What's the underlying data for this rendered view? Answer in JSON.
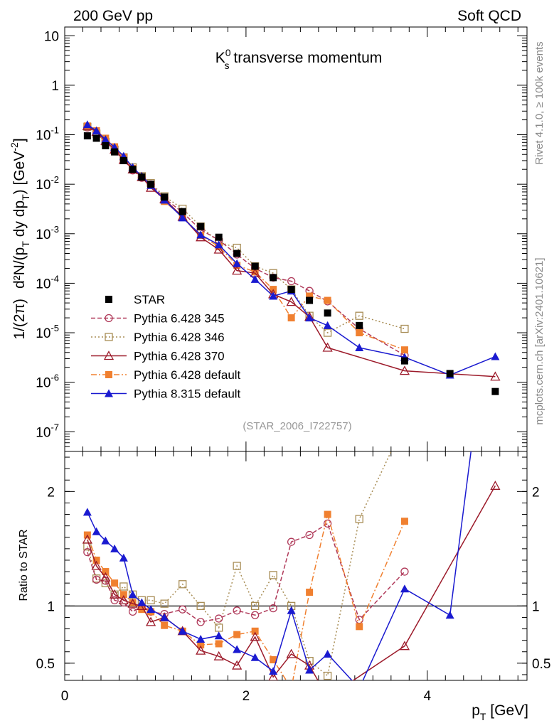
{
  "header": {
    "left": "200 GeV pp",
    "right": "Soft QCD"
  },
  "side": {
    "rivet": "Rivet 4.1.0, ≥ 100k events",
    "mcplots": "mcplots.cern.ch [arXiv:2401.10621]"
  },
  "analysis_id": "(STAR_2006_I722757)",
  "colors": {
    "STAR": "#000000",
    "p345": "#b03a5a",
    "p346": "#a88d55",
    "p370": "#9c1a2a",
    "p6def": "#f08030",
    "p8def": "#1a1ad0"
  },
  "chart_data": [
    {
      "type": "line",
      "scale": "log",
      "title_main": "K",
      "title_sup": "0",
      "title_sub": "s",
      "title_rest": " transverse momentum",
      "ylabel_a": "1/(2π)",
      "ylabel_b": "d²N/(p",
      "ylabel_b_sub": "T",
      "ylabel_c": " dy dp",
      "ylabel_c_sub": "T",
      "ylabel_d": ") [GeV",
      "ylabel_d_sup": "-2",
      "ylabel_e": "]",
      "ylim": [
        4e-08,
        15
      ],
      "xlim": [
        0,
        5.1
      ],
      "yticks": [
        {
          "v": 10,
          "label": "10"
        },
        {
          "v": 1,
          "label": "1"
        },
        {
          "v": 0.1,
          "label": "10",
          "exp": "-1"
        },
        {
          "v": 0.01,
          "label": "10",
          "exp": "-2"
        },
        {
          "v": 0.001,
          "label": "10",
          "exp": "-3"
        },
        {
          "v": 0.0001,
          "label": "10",
          "exp": "-4"
        },
        {
          "v": 1e-05,
          "label": "10",
          "exp": "-5"
        },
        {
          "v": 1e-06,
          "label": "10",
          "exp": "-6"
        },
        {
          "v": 1e-07,
          "label": "10",
          "exp": "-7"
        }
      ],
      "series": [
        {
          "key": "STAR",
          "name": "STAR",
          "x": [
            0.25,
            0.35,
            0.45,
            0.55,
            0.65,
            0.75,
            0.85,
            0.95,
            1.1,
            1.3,
            1.5,
            1.7,
            1.9,
            2.1,
            2.3,
            2.5,
            2.7,
            2.9,
            3.25,
            3.75,
            4.25,
            4.75
          ],
          "y": [
            0.095,
            0.085,
            0.06,
            0.045,
            0.03,
            0.02,
            0.014,
            0.01,
            0.0055,
            0.0028,
            0.0014,
            0.00085,
            0.0004,
            0.00022,
            0.00013,
            7.5e-05,
            4.5e-05,
            2.5e-05,
            1.4e-05,
            2.7e-06,
            1.5e-06,
            6.5e-07
          ]
        },
        {
          "key": "p345",
          "name": "Pythia 6.428 345",
          "x": [
            0.25,
            0.35,
            0.45,
            0.55,
            0.65,
            0.75,
            0.85,
            0.95,
            1.1,
            1.3,
            1.5,
            1.7,
            1.9,
            2.1,
            2.3,
            2.5,
            2.7,
            2.9,
            3.25,
            3.75
          ],
          "y": [
            0.14,
            0.105,
            0.075,
            0.047,
            0.031,
            0.019,
            0.0135,
            0.0099,
            0.0052,
            0.0027,
            0.0012,
            0.00075,
            0.00038,
            0.0002,
            0.00013,
            0.00011,
            7e-05,
            4.3e-05,
            1.2e-05,
            3.5e-06
          ]
        },
        {
          "key": "p346",
          "name": "Pythia 6.428 346",
          "x": [
            0.25,
            0.35,
            0.45,
            0.55,
            0.65,
            0.75,
            0.85,
            0.95,
            1.1,
            1.3,
            1.5,
            1.7,
            1.9,
            2.1,
            2.3,
            2.5,
            2.7,
            2.9,
            3.25,
            3.75
          ],
          "y": [
            0.145,
            0.105,
            0.072,
            0.05,
            0.035,
            0.022,
            0.0145,
            0.0105,
            0.0057,
            0.0032,
            0.0014,
            0.00068,
            0.00052,
            0.00022,
            0.00016,
            7.5e-05,
            2.2e-05,
            1e-05,
            2.2e-05,
            1.2e-05
          ]
        },
        {
          "key": "p370",
          "name": "Pythia 6.428 370",
          "x": [
            0.25,
            0.35,
            0.45,
            0.55,
            0.65,
            0.75,
            0.85,
            0.95,
            1.1,
            1.3,
            1.5,
            1.7,
            1.9,
            2.1,
            2.3,
            2.5,
            2.7,
            2.9,
            3.75,
            4.75
          ],
          "y": [
            0.15,
            0.115,
            0.075,
            0.05,
            0.031,
            0.02,
            0.014,
            0.0085,
            0.005,
            0.0022,
            0.00085,
            0.00048,
            0.00018,
            0.00016,
            6e-05,
            4.2e-05,
            2.1e-05,
            5e-06,
            1.7e-06,
            1.3e-06
          ]
        },
        {
          "key": "p6def",
          "name": "Pythia 6.428 default",
          "x": [
            0.25,
            0.35,
            0.45,
            0.55,
            0.65,
            0.75,
            0.85,
            0.95,
            1.1,
            1.3,
            1.5,
            1.7,
            1.9,
            2.1,
            2.3,
            2.5,
            2.7,
            2.9,
            3.25,
            3.75
          ],
          "y": [
            0.15,
            0.12,
            0.085,
            0.057,
            0.035,
            0.021,
            0.014,
            0.0095,
            0.0045,
            0.0022,
            0.00093,
            0.00055,
            0.00023,
            0.00017,
            7.5e-05,
            2e-05,
            5.5e-05,
            4.5e-05,
            1e-05,
            4.5e-06
          ]
        },
        {
          "key": "p8def",
          "name": "Pythia 8.315 default",
          "x": [
            0.25,
            0.35,
            0.45,
            0.55,
            0.65,
            0.75,
            0.85,
            0.95,
            1.1,
            1.3,
            1.5,
            1.7,
            1.9,
            2.1,
            2.3,
            2.5,
            2.7,
            2.9,
            3.25,
            3.75,
            4.25,
            4.75
          ],
          "y": [
            0.16,
            0.12,
            0.08,
            0.056,
            0.037,
            0.022,
            0.0145,
            0.0095,
            0.0048,
            0.0021,
            0.00095,
            0.0006,
            0.00025,
            0.00012,
            5.5e-05,
            7e-05,
            2e-05,
            1.4e-05,
            5e-06,
            3.2e-06,
            1.4e-06,
            3.3e-06
          ]
        }
      ],
      "legend_placement": "lower-left"
    },
    {
      "type": "line",
      "scale": "linear",
      "ylabel": "Ratio to STAR",
      "xlabel_main": "p",
      "xlabel_sub": "T",
      "xlabel_rest": " [GeV]",
      "ylim": [
        0.35,
        2.35
      ],
      "xlim": [
        0,
        5.1
      ],
      "xticks": [
        {
          "v": 0,
          "label": "0"
        },
        {
          "v": 2,
          "label": "2"
        },
        {
          "v": 4,
          "label": "4"
        }
      ],
      "yticks": [
        {
          "v": 2,
          "label": "2"
        },
        {
          "v": 1,
          "label": "1"
        },
        {
          "v": 0.5,
          "label": "0.5"
        }
      ],
      "reference_line": 1,
      "series": [
        {
          "key": "p345",
          "x": [
            0.25,
            0.35,
            0.45,
            0.55,
            0.65,
            0.75,
            0.85,
            0.95,
            1.1,
            1.3,
            1.5,
            1.7,
            1.9,
            2.1,
            2.3,
            2.5,
            2.7,
            2.9,
            3.25,
            3.75
          ],
          "y": [
            1.47,
            1.23,
            1.22,
            1.05,
            1.03,
            0.95,
            1.0,
            0.95,
            0.93,
            0.97,
            0.86,
            0.89,
            0.96,
            0.92,
            0.98,
            1.56,
            1.62,
            1.72,
            0.88,
            1.3
          ]
        },
        {
          "key": "p346",
          "x": [
            0.25,
            0.35,
            0.45,
            0.55,
            0.65,
            0.75,
            0.85,
            0.95,
            1.1,
            1.3,
            1.5,
            1.7,
            1.9,
            2.1,
            2.3,
            2.5,
            2.7,
            2.9,
            3.25,
            3.75
          ],
          "y": [
            1.52,
            1.24,
            1.2,
            1.1,
            1.17,
            1.1,
            1.05,
            1.05,
            1.02,
            1.19,
            1.0,
            0.81,
            1.35,
            1.0,
            1.27,
            1.0,
            0.52,
            0.39,
            1.76,
            2.6
          ]
        },
        {
          "key": "p370",
          "x": [
            0.25,
            0.35,
            0.45,
            0.55,
            0.65,
            0.75,
            0.85,
            0.95,
            1.1,
            1.3,
            1.5,
            1.7,
            1.9,
            2.1,
            2.3,
            2.5,
            2.7,
            2.9,
            3.75,
            4.75
          ],
          "y": [
            1.58,
            1.35,
            1.25,
            1.1,
            1.05,
            1.02,
            1.0,
            0.86,
            0.9,
            0.78,
            0.61,
            0.56,
            0.48,
            0.73,
            0.38,
            0.58,
            0.48,
            0.2,
            0.65,
            2.05
          ]
        },
        {
          "key": "p6def",
          "x": [
            0.25,
            0.35,
            0.45,
            0.55,
            0.65,
            0.75,
            0.85,
            0.95,
            1.1,
            1.3,
            1.5,
            1.7,
            1.9,
            2.1,
            2.3,
            2.5,
            2.7,
            2.9,
            3.25,
            3.75
          ],
          "y": [
            1.62,
            1.4,
            1.3,
            1.2,
            1.1,
            1.03,
            0.97,
            0.95,
            0.83,
            0.78,
            0.66,
            0.67,
            0.75,
            0.78,
            0.53,
            0.28,
            1.12,
            1.8,
            0.82,
            1.74
          ]
        },
        {
          "key": "p8def",
          "x": [
            0.25,
            0.35,
            0.45,
            0.55,
            0.65,
            0.75,
            0.85,
            0.95,
            1.1,
            1.3,
            1.5,
            1.7,
            1.9,
            2.1,
            2.3,
            2.5,
            2.7,
            2.9,
            3.25,
            3.75,
            4.25,
            4.75
          ],
          "y": [
            1.82,
            1.65,
            1.57,
            1.5,
            1.42,
            1.1,
            1.03,
            0.97,
            0.9,
            0.78,
            0.71,
            0.74,
            0.62,
            0.55,
            0.43,
            0.96,
            0.44,
            0.58,
            0.28,
            1.15,
            0.92,
            4.0
          ]
        }
      ]
    }
  ]
}
